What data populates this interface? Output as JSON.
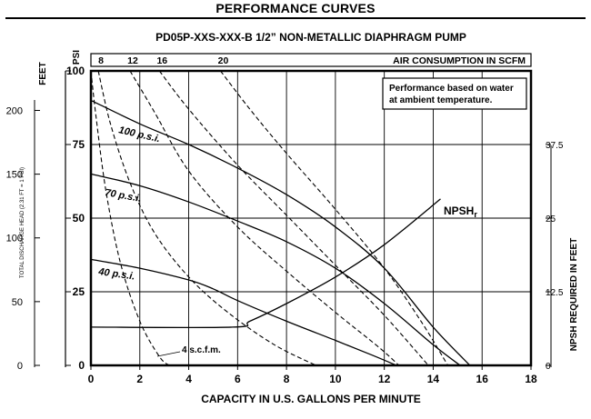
{
  "header": {
    "title": "PERFORMANCE CURVES"
  },
  "chart_data": {
    "type": "line",
    "title": "PD05P-XXS-XXX-B  1/2” NON-METALLIC DIAPHRAGM PUMP",
    "note_lines": [
      "Performance based on water",
      "at ambient temperature."
    ],
    "xlabel": "CAPACITY IN U.S. GALLONS PER MINUTE",
    "xlim": [
      0,
      18
    ],
    "x_ticks": [
      "0",
      "2",
      "4",
      "6",
      "8",
      "10",
      "12",
      "14",
      "16",
      "18"
    ],
    "ylabel_left": "TOTAL DISCHARGE HEAD (2.31 FT = 1 PSI)",
    "left_feet_unit": "FEET",
    "left_feet_ticks": [
      "0",
      "50",
      "100",
      "150",
      "200"
    ],
    "left_psi_unit": "PSI",
    "left_psi_ticks": [
      "0",
      "25",
      "50",
      "75",
      "100"
    ],
    "ylim_psi": [
      0,
      100
    ],
    "ylabel_right": "NPSH REQUIRED IN FEET",
    "right_ticks": [
      "0",
      "12.5",
      "25",
      "37.5"
    ],
    "top_axis_label": "AIR CONSUMPTION IN SCFM",
    "top_ticks": [
      "8",
      "12",
      "16",
      "20"
    ],
    "grid": true,
    "series": [
      {
        "name": "100 p.s.i.",
        "style": "solid",
        "x": [
          0,
          2,
          4,
          6,
          8,
          10,
          12,
          14,
          15.5
        ],
        "y": [
          90,
          82,
          75,
          67,
          58,
          47,
          33,
          13,
          0
        ]
      },
      {
        "name": "70 p.s.i.",
        "style": "solid",
        "x": [
          0,
          2,
          4,
          6,
          8,
          10,
          12,
          14,
          15.1
        ],
        "y": [
          65,
          61,
          55.5,
          49,
          42,
          33,
          21,
          7,
          0
        ]
      },
      {
        "name": "40 p.s.i.",
        "style": "solid",
        "x": [
          0,
          2,
          4,
          5,
          6,
          8,
          10,
          11.5,
          12.5
        ],
        "y": [
          36,
          33,
          29,
          26,
          22,
          15,
          8.5,
          3.5,
          0
        ]
      },
      {
        "name": "NPSHr",
        "style": "solid",
        "x": [
          0,
          5.8,
          6.5,
          8,
          10,
          12,
          14.3
        ],
        "y": [
          13,
          13,
          15,
          21,
          30,
          41,
          56.5
        ]
      },
      {
        "name": "4 s.c.f.m.",
        "style": "dashed",
        "x": [
          0,
          0.2,
          0.6,
          1.2,
          2,
          2.8,
          3.2
        ],
        "y": [
          100,
          85,
          60,
          35,
          15,
          3,
          0
        ]
      },
      {
        "name": "8",
        "style": "dashed",
        "x": [
          0.3,
          0.8,
          1.6,
          2.6,
          4,
          5.6,
          7.5,
          9.2
        ],
        "y": [
          100,
          82,
          62,
          45,
          30,
          18,
          7,
          0
        ]
      },
      {
        "name": "12",
        "style": "dashed",
        "x": [
          1.6,
          2.6,
          4,
          6,
          8,
          10,
          11.8,
          12.6
        ],
        "y": [
          100,
          86,
          66,
          47,
          32,
          18,
          6,
          0
        ]
      },
      {
        "name": "16",
        "style": "dashed",
        "x": [
          2.8,
          4,
          6,
          8,
          10,
          12,
          13.8
        ],
        "y": [
          100,
          87,
          68,
          51,
          34,
          17,
          0
        ]
      },
      {
        "name": "20",
        "style": "dashed",
        "x": [
          5.3,
          6.5,
          8,
          10,
          12,
          13.5,
          14.6
        ],
        "y": [
          100,
          87,
          72,
          53,
          33,
          15,
          0
        ]
      }
    ]
  }
}
